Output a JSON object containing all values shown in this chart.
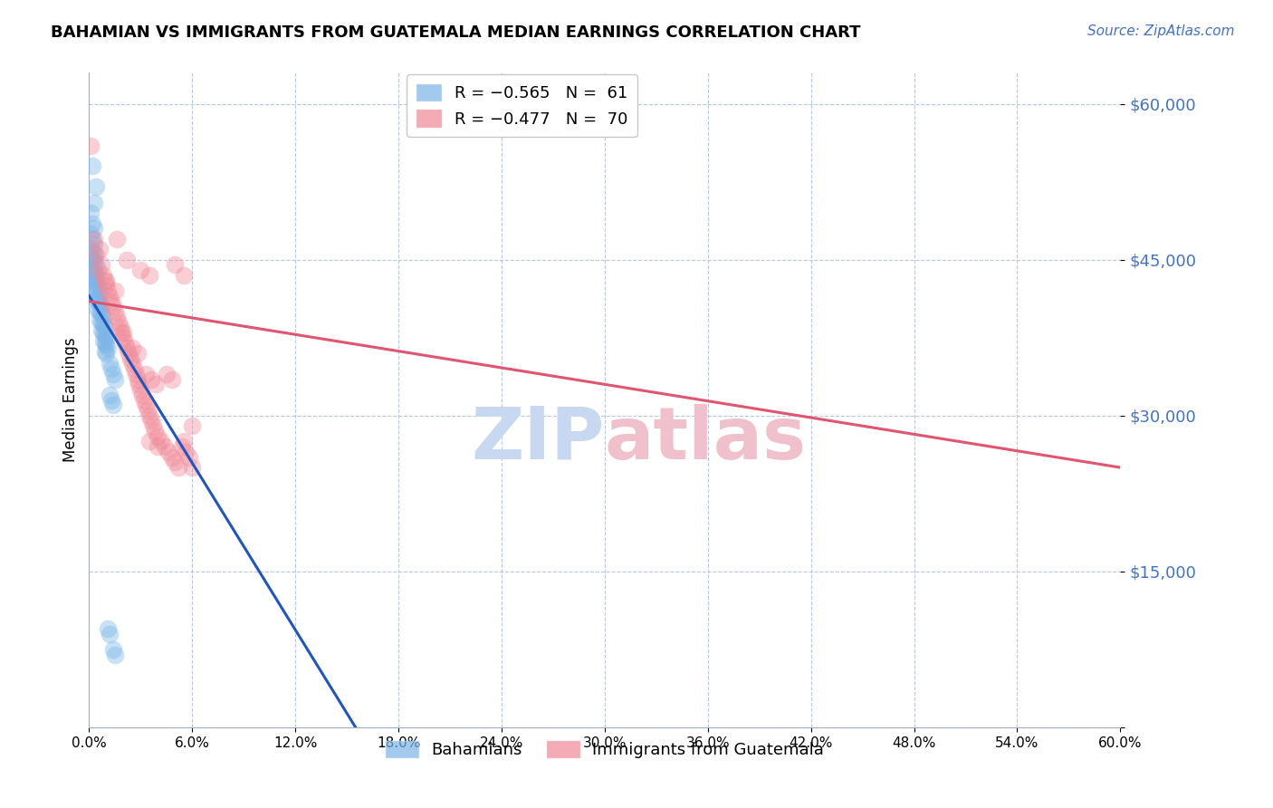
{
  "title": "BAHAMIAN VS IMMIGRANTS FROM GUATEMALA MEDIAN EARNINGS CORRELATION CHART",
  "source": "Source: ZipAtlas.com",
  "ylabel": "Median Earnings",
  "yticks": [
    0,
    15000,
    30000,
    45000,
    60000
  ],
  "ytick_labels": [
    "",
    "$15,000",
    "$30,000",
    "$45,000",
    "$60,000"
  ],
  "xmin": 0.0,
  "xmax": 0.6,
  "ymin": 0,
  "ymax": 63000,
  "bahamians_label": "Bahamians",
  "guatemala_label": "Immigrants from Guatemala",
  "blue_color": "#7ab4e8",
  "pink_color": "#f08898",
  "blue_line_color": "#2255bb",
  "pink_line_color": "#e05570",
  "watermark_blue": "#c8d8f0",
  "watermark_pink": "#f0c0cc",
  "blue_scatter": [
    [
      0.002,
      54000
    ],
    [
      0.004,
      52000
    ],
    [
      0.003,
      50500
    ],
    [
      0.001,
      49500
    ],
    [
      0.002,
      48500
    ],
    [
      0.003,
      48000
    ],
    [
      0.001,
      47500
    ],
    [
      0.002,
      47000
    ],
    [
      0.003,
      46500
    ],
    [
      0.001,
      46000
    ],
    [
      0.002,
      45800
    ],
    [
      0.003,
      45500
    ],
    [
      0.001,
      45200
    ],
    [
      0.002,
      45000
    ],
    [
      0.003,
      44800
    ],
    [
      0.004,
      44500
    ],
    [
      0.001,
      44200
    ],
    [
      0.002,
      44000
    ],
    [
      0.003,
      43800
    ],
    [
      0.004,
      43500
    ],
    [
      0.002,
      43200
    ],
    [
      0.003,
      43000
    ],
    [
      0.004,
      42800
    ],
    [
      0.005,
      42500
    ],
    [
      0.003,
      42200
    ],
    [
      0.004,
      42000
    ],
    [
      0.005,
      41800
    ],
    [
      0.006,
      41500
    ],
    [
      0.004,
      41200
    ],
    [
      0.005,
      41000
    ],
    [
      0.006,
      40800
    ],
    [
      0.007,
      40500
    ],
    [
      0.005,
      40200
    ],
    [
      0.006,
      40000
    ],
    [
      0.007,
      39800
    ],
    [
      0.008,
      39500
    ],
    [
      0.006,
      39200
    ],
    [
      0.007,
      39000
    ],
    [
      0.008,
      38800
    ],
    [
      0.009,
      38500
    ],
    [
      0.007,
      38200
    ],
    [
      0.008,
      38000
    ],
    [
      0.009,
      37800
    ],
    [
      0.01,
      37500
    ],
    [
      0.008,
      37200
    ],
    [
      0.009,
      37000
    ],
    [
      0.01,
      36800
    ],
    [
      0.011,
      36500
    ],
    [
      0.009,
      36200
    ],
    [
      0.01,
      36000
    ],
    [
      0.012,
      35000
    ],
    [
      0.013,
      34500
    ],
    [
      0.014,
      34000
    ],
    [
      0.015,
      33500
    ],
    [
      0.012,
      32000
    ],
    [
      0.013,
      31500
    ],
    [
      0.014,
      31000
    ],
    [
      0.011,
      9500
    ],
    [
      0.012,
      9000
    ],
    [
      0.014,
      7500
    ],
    [
      0.015,
      7000
    ]
  ],
  "pink_scatter": [
    [
      0.001,
      56000
    ],
    [
      0.003,
      47000
    ],
    [
      0.006,
      46000
    ],
    [
      0.004,
      45500
    ],
    [
      0.007,
      44500
    ],
    [
      0.005,
      44000
    ],
    [
      0.008,
      43500
    ],
    [
      0.009,
      43000
    ],
    [
      0.01,
      42500
    ],
    [
      0.011,
      42000
    ],
    [
      0.012,
      41500
    ],
    [
      0.013,
      41000
    ],
    [
      0.014,
      40500
    ],
    [
      0.015,
      40000
    ],
    [
      0.016,
      39500
    ],
    [
      0.017,
      39000
    ],
    [
      0.018,
      38500
    ],
    [
      0.019,
      38000
    ],
    [
      0.02,
      37500
    ],
    [
      0.021,
      37000
    ],
    [
      0.022,
      36500
    ],
    [
      0.023,
      36000
    ],
    [
      0.024,
      35500
    ],
    [
      0.025,
      35000
    ],
    [
      0.026,
      34500
    ],
    [
      0.027,
      34000
    ],
    [
      0.028,
      33500
    ],
    [
      0.029,
      33000
    ],
    [
      0.03,
      32500
    ],
    [
      0.031,
      32000
    ],
    [
      0.032,
      31500
    ],
    [
      0.033,
      31000
    ],
    [
      0.034,
      30500
    ],
    [
      0.035,
      30000
    ],
    [
      0.036,
      29500
    ],
    [
      0.037,
      29000
    ],
    [
      0.038,
      28500
    ],
    [
      0.04,
      28000
    ],
    [
      0.042,
      27500
    ],
    [
      0.044,
      27000
    ],
    [
      0.046,
      26500
    ],
    [
      0.048,
      26000
    ],
    [
      0.05,
      25500
    ],
    [
      0.052,
      25000
    ],
    [
      0.054,
      27000
    ],
    [
      0.056,
      26500
    ],
    [
      0.058,
      26000
    ],
    [
      0.06,
      29000
    ],
    [
      0.016,
      47000
    ],
    [
      0.022,
      45000
    ],
    [
      0.03,
      44000
    ],
    [
      0.035,
      43500
    ],
    [
      0.01,
      43000
    ],
    [
      0.05,
      44500
    ],
    [
      0.055,
      43500
    ],
    [
      0.033,
      34000
    ],
    [
      0.036,
      33500
    ],
    [
      0.039,
      33000
    ],
    [
      0.02,
      38000
    ],
    [
      0.015,
      42000
    ],
    [
      0.025,
      36500
    ],
    [
      0.028,
      36000
    ],
    [
      0.045,
      34000
    ],
    [
      0.048,
      33500
    ],
    [
      0.04,
      27000
    ],
    [
      0.035,
      27500
    ],
    [
      0.055,
      27500
    ],
    [
      0.06,
      25000
    ]
  ],
  "blue_trend_x": [
    0.0,
    0.155
  ],
  "blue_trend_y": [
    41500,
    0
  ],
  "pink_trend_x": [
    0.0,
    0.6
  ],
  "pink_trend_y": [
    41000,
    25000
  ]
}
